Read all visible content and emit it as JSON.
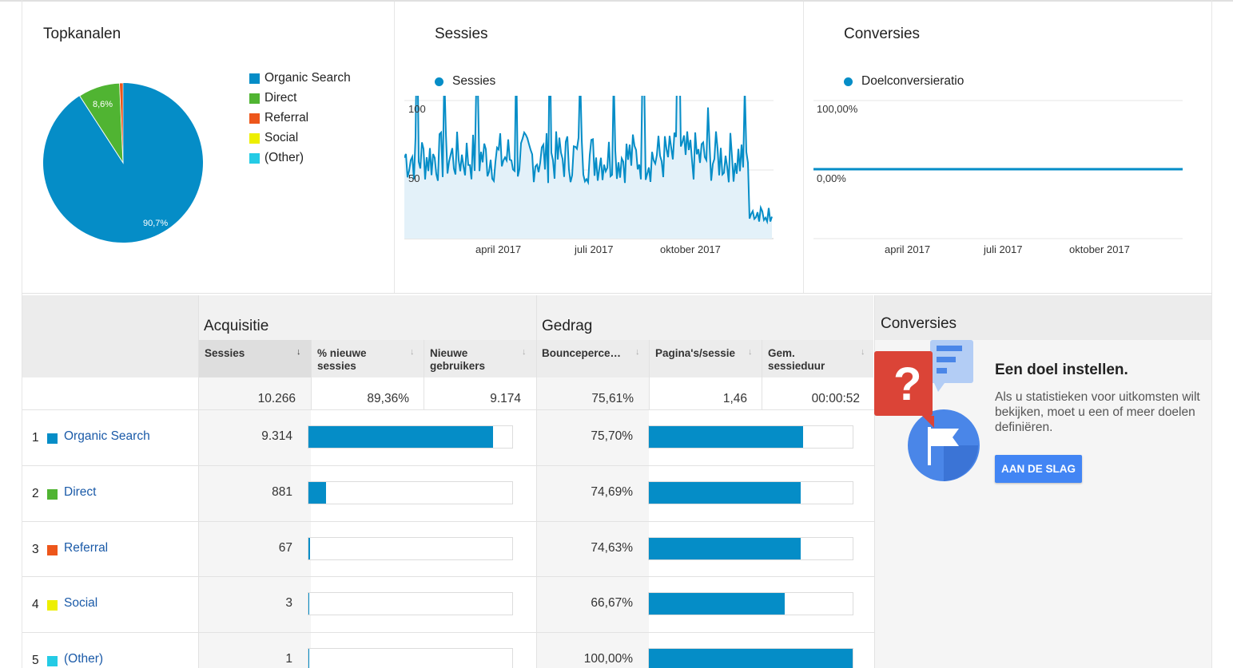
{
  "topchannels": {
    "title": "Topkanalen",
    "legend": [
      {
        "label": "Organic Search",
        "color": "#058dc7"
      },
      {
        "label": "Direct",
        "color": "#50b432"
      },
      {
        "label": "Referral",
        "color": "#ed561b"
      },
      {
        "label": "Social",
        "color": "#edef00"
      },
      {
        "label": "(Other)",
        "color": "#24cbe5"
      }
    ],
    "pie_labels": {
      "organic": "90,7%",
      "direct": "8,6%"
    }
  },
  "sessions_panel": {
    "title": "Sessies",
    "series_label": "Sessies",
    "y_ticks": [
      "100",
      "50"
    ],
    "x_ticks": [
      "april 2017",
      "juli 2017",
      "oktober 2017"
    ]
  },
  "conversions_panel": {
    "title": "Conversies",
    "series_label": "Doelconversieratio",
    "y_ticks": [
      "100,00%",
      "0,00%"
    ],
    "x_ticks": [
      "april 2017",
      "juli 2017",
      "oktober 2017"
    ]
  },
  "table": {
    "group_acquisition": "Acquisitie",
    "group_behavior": "Gedrag",
    "group_conversions": "Conversies",
    "columns": {
      "sessions": "Sessies",
      "pct_new_1": "% nieuwe",
      "pct_new_2": "sessies",
      "new_users_1": "Nieuwe",
      "new_users_2": "gebruikers",
      "bounce": "Bounceperce…",
      "pages": "Pagina's/sessie",
      "duration_1": "Gem.",
      "duration_2": "sessieduur"
    },
    "totals": {
      "sessions": "10.266",
      "pct_new": "89,36%",
      "new_users": "9.174",
      "bounce": "75,61%",
      "pages": "1,46",
      "duration": "00:00:52"
    },
    "rows": [
      {
        "num": "1",
        "label": "Organic Search",
        "color": "#058dc7",
        "sessions": "9.314",
        "sessions_frac": 0.907,
        "bounce": "75,70%",
        "bounce_frac": 0.757
      },
      {
        "num": "2",
        "label": "Direct",
        "color": "#50b432",
        "sessions": "881",
        "sessions_frac": 0.086,
        "bounce": "74,69%",
        "bounce_frac": 0.7469
      },
      {
        "num": "3",
        "label": "Referral",
        "color": "#ed561b",
        "sessions": "67",
        "sessions_frac": 0.0065,
        "bounce": "74,63%",
        "bounce_frac": 0.7463
      },
      {
        "num": "4",
        "label": "Social",
        "color": "#edef00",
        "sessions": "3",
        "sessions_frac": 0.0003,
        "bounce": "66,67%",
        "bounce_frac": 0.6667
      },
      {
        "num": "5",
        "label": "(Other)",
        "color": "#24cbe5",
        "sessions": "1",
        "sessions_frac": 0.0001,
        "bounce": "100,00%",
        "bounce_frac": 1.0
      }
    ]
  },
  "goal_promo": {
    "title": "Een doel instellen.",
    "body": "Als u statistieken voor uitkomsten wilt bekijken, moet u een of meer doelen definiëren.",
    "button": "AAN DE SLAG"
  }
}
